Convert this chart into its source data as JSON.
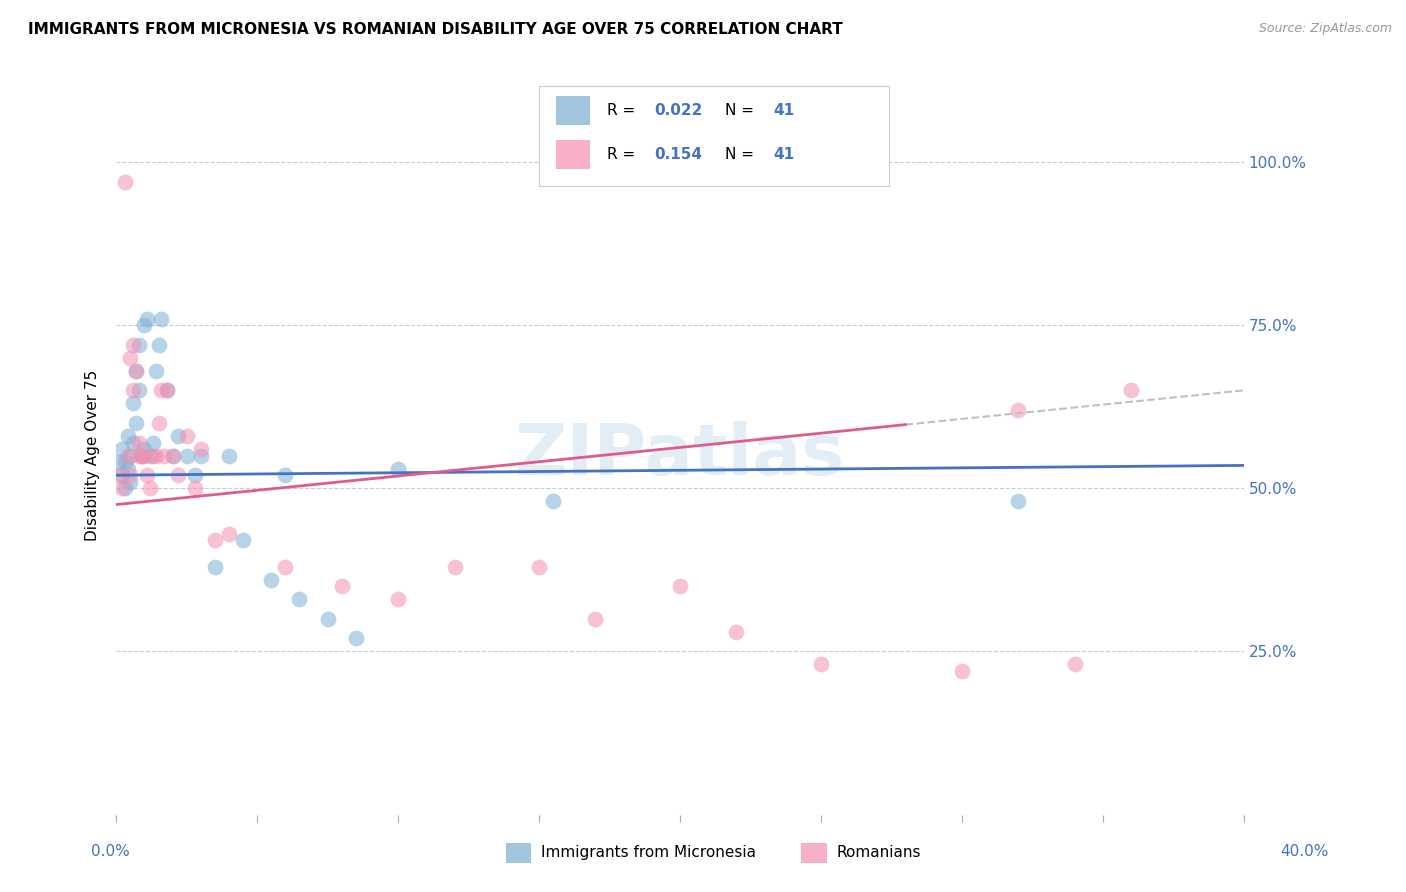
{
  "title": "IMMIGRANTS FROM MICRONESIA VS ROMANIAN DISABILITY AGE OVER 75 CORRELATION CHART",
  "source": "Source: ZipAtlas.com",
  "ylabel": "Disability Age Over 75",
  "ytick_labels": [
    "100.0%",
    "75.0%",
    "50.0%",
    "25.0%"
  ],
  "ytick_values": [
    1.0,
    0.75,
    0.5,
    0.25
  ],
  "xlim": [
    0.0,
    0.4
  ],
  "ylim": [
    0.0,
    1.1
  ],
  "series1_color": "#7bafd4",
  "series2_color": "#f48fb1",
  "trendline1_color": "#4472c4",
  "trendline2_color": "#e05a8a",
  "trendline_dashed_color": "#c0c0c0",
  "watermark": "ZIPatlas",
  "r1": "0.022",
  "r2": "0.154",
  "n1": "41",
  "n2": "41",
  "legend_label1": "Immigrants from Micronesia",
  "legend_label2": "Romanians",
  "micronesia_x": [
    0.001,
    0.002,
    0.002,
    0.003,
    0.003,
    0.004,
    0.004,
    0.005,
    0.005,
    0.006,
    0.006,
    0.007,
    0.007,
    0.008,
    0.008,
    0.009,
    0.01,
    0.01,
    0.011,
    0.012,
    0.013,
    0.014,
    0.015,
    0.016,
    0.018,
    0.02,
    0.022,
    0.025,
    0.028,
    0.03,
    0.035,
    0.04,
    0.045,
    0.055,
    0.06,
    0.065,
    0.075,
    0.085,
    0.1,
    0.155,
    0.32
  ],
  "micronesia_y": [
    0.54,
    0.56,
    0.52,
    0.54,
    0.5,
    0.58,
    0.53,
    0.55,
    0.51,
    0.63,
    0.57,
    0.68,
    0.6,
    0.65,
    0.72,
    0.55,
    0.75,
    0.56,
    0.76,
    0.55,
    0.57,
    0.68,
    0.72,
    0.76,
    0.65,
    0.55,
    0.58,
    0.55,
    0.52,
    0.55,
    0.38,
    0.55,
    0.42,
    0.36,
    0.52,
    0.33,
    0.3,
    0.27,
    0.53,
    0.48,
    0.48
  ],
  "romanian_x": [
    0.001,
    0.002,
    0.003,
    0.004,
    0.005,
    0.005,
    0.006,
    0.006,
    0.007,
    0.008,
    0.008,
    0.009,
    0.01,
    0.011,
    0.012,
    0.013,
    0.014,
    0.015,
    0.016,
    0.017,
    0.018,
    0.02,
    0.022,
    0.025,
    0.028,
    0.03,
    0.035,
    0.04,
    0.06,
    0.08,
    0.1,
    0.12,
    0.15,
    0.17,
    0.2,
    0.22,
    0.25,
    0.3,
    0.32,
    0.34,
    0.36
  ],
  "romanian_y": [
    0.52,
    0.5,
    0.97,
    0.55,
    0.7,
    0.52,
    0.72,
    0.65,
    0.68,
    0.57,
    0.55,
    0.55,
    0.55,
    0.52,
    0.5,
    0.55,
    0.55,
    0.6,
    0.65,
    0.55,
    0.65,
    0.55,
    0.52,
    0.58,
    0.5,
    0.56,
    0.42,
    0.43,
    0.38,
    0.35,
    0.33,
    0.38,
    0.38,
    0.3,
    0.35,
    0.28,
    0.23,
    0.22,
    0.62,
    0.23,
    0.65
  ]
}
